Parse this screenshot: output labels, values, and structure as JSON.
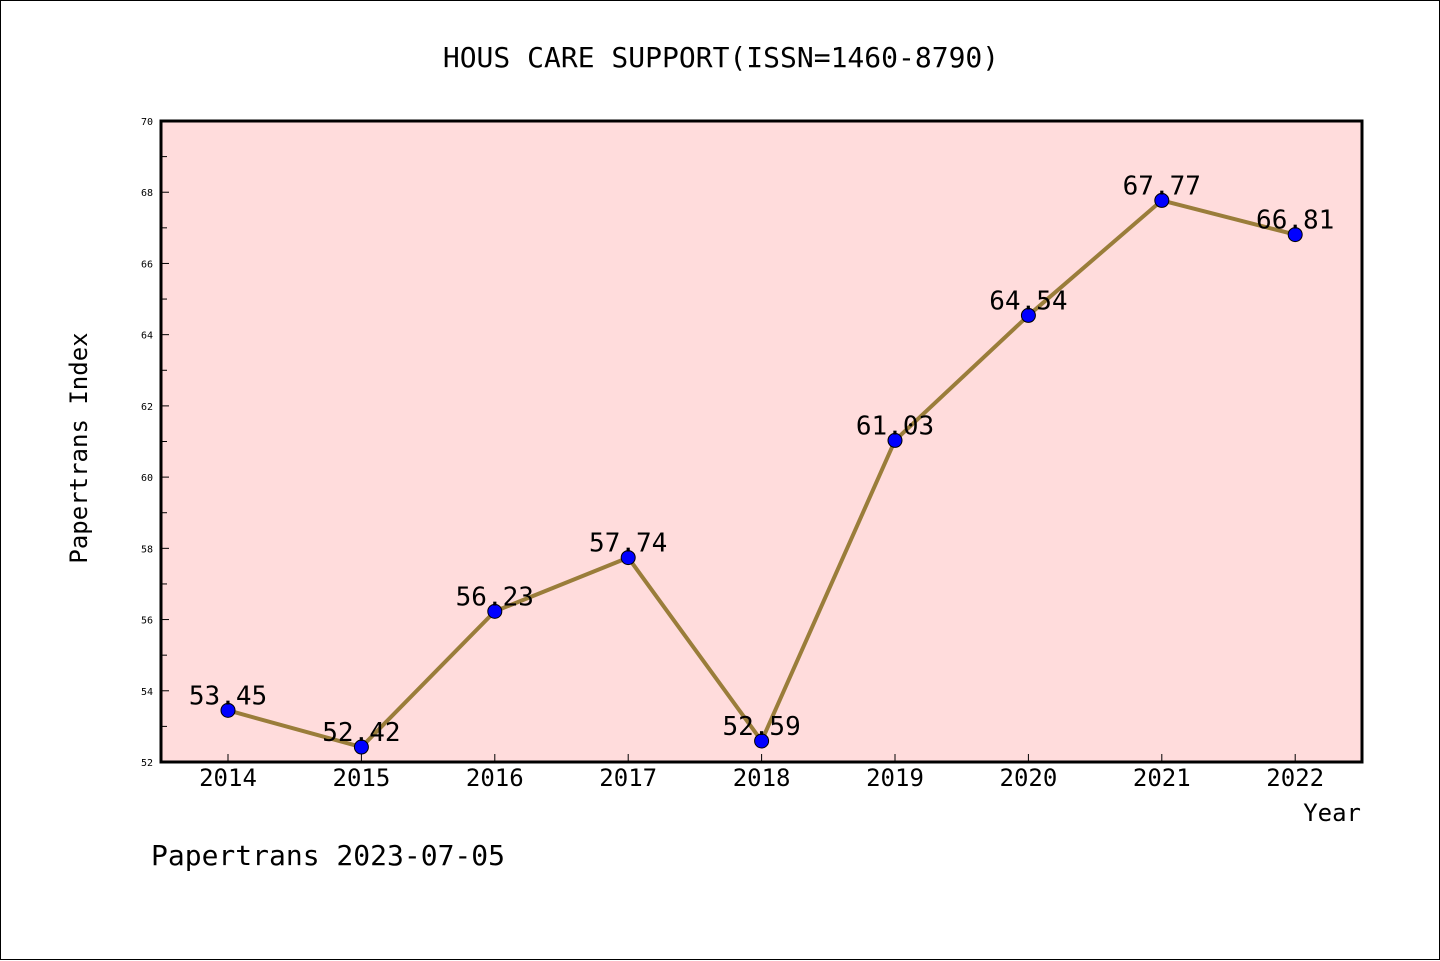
{
  "chart_data": {
    "type": "line",
    "title": "HOUS CARE SUPPORT(ISSN=1460-8790)",
    "xlabel": "Year",
    "ylabel": "Papertrans Index",
    "footer": "Papertrans 2023-07-05",
    "categories": [
      "2014",
      "2015",
      "2016",
      "2017",
      "2018",
      "2019",
      "2020",
      "2021",
      "2022"
    ],
    "series": [
      {
        "values": [
          53.45,
          52.42,
          56.23,
          57.74,
          52.59,
          61.03,
          64.54,
          67.77,
          66.81
        ],
        "labels": [
          "53.45",
          "52.42",
          "56.23",
          "57.74",
          "52.59",
          "61.03",
          "64.54",
          "67.77",
          "66.81"
        ]
      }
    ],
    "ylim": [
      52,
      70
    ],
    "yticks": [
      52,
      54,
      56,
      58,
      60,
      62,
      64,
      66,
      68,
      70
    ],
    "colors": {
      "line": "#9a7d3a",
      "marker": "#0000ff",
      "plot_background": "#ffdcdc"
    }
  }
}
